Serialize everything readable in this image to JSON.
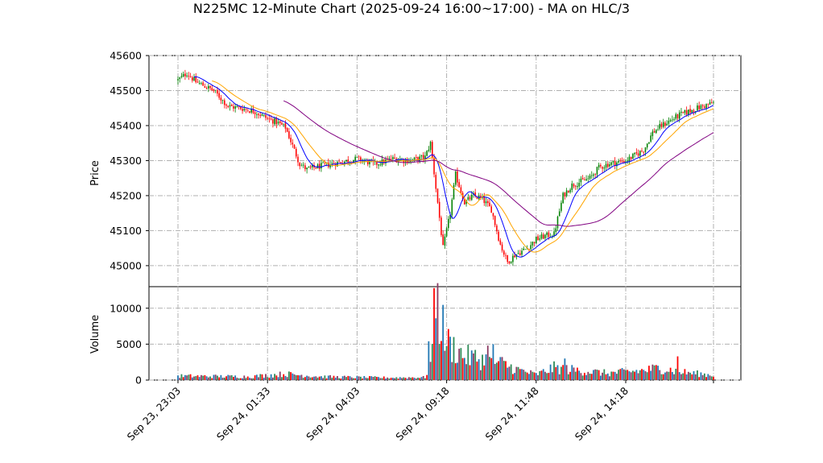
{
  "chart_data": {
    "type": "candlestick",
    "title": "N225MC 12-Minute Chart (2025-09-24 16:00~17:00) - MA on HLC/3",
    "price_panel": {
      "ylabel": "Price",
      "ylim": [
        44940,
        45600
      ],
      "yticks": [
        "45000",
        "45100",
        "45200",
        "45300",
        "45400",
        "45500",
        "45600"
      ],
      "grid": true
    },
    "volume_panel": {
      "ylabel": "Volume",
      "ylim": [
        0,
        13000
      ],
      "yticks": [
        "0",
        "5000",
        "10000"
      ],
      "grid": true
    },
    "x_ticks": [
      {
        "index": 0,
        "label": "Sep 23, 23:03"
      },
      {
        "index": 50,
        "label": "Sep 24, 01:33"
      },
      {
        "index": 100,
        "label": "Sep 24, 04:03"
      },
      {
        "index": 150,
        "label": "Sep 24, 09:18"
      },
      {
        "index": 200,
        "label": "Sep 24, 11:48"
      },
      {
        "index": 250,
        "label": "Sep 24, 14:18"
      }
    ],
    "bar_count": 300,
    "price_path": [
      [
        0,
        45530
      ],
      [
        5,
        45550
      ],
      [
        10,
        45525
      ],
      [
        20,
        45500
      ],
      [
        28,
        45455
      ],
      [
        35,
        45450
      ],
      [
        43,
        45440
      ],
      [
        50,
        45420
      ],
      [
        55,
        45410
      ],
      [
        60,
        45395
      ],
      [
        68,
        45290
      ],
      [
        72,
        45275
      ],
      [
        80,
        45285
      ],
      [
        90,
        45295
      ],
      [
        100,
        45305
      ],
      [
        110,
        45290
      ],
      [
        120,
        45305
      ],
      [
        130,
        45300
      ],
      [
        138,
        45310
      ],
      [
        141,
        45350
      ],
      [
        145,
        45180
      ],
      [
        148,
        45050
      ],
      [
        152,
        45150
      ],
      [
        155,
        45260
      ],
      [
        160,
        45180
      ],
      [
        165,
        45200
      ],
      [
        170,
        45190
      ],
      [
        175,
        45160
      ],
      [
        180,
        45060
      ],
      [
        184,
        45010
      ],
      [
        188,
        45030
      ],
      [
        195,
        45050
      ],
      [
        200,
        45075
      ],
      [
        205,
        45085
      ],
      [
        210,
        45090
      ],
      [
        215,
        45200
      ],
      [
        220,
        45230
      ],
      [
        225,
        45240
      ],
      [
        230,
        45250
      ],
      [
        235,
        45280
      ],
      [
        240,
        45290
      ],
      [
        250,
        45300
      ],
      [
        260,
        45330
      ],
      [
        265,
        45380
      ],
      [
        270,
        45400
      ],
      [
        280,
        45430
      ],
      [
        290,
        45450
      ],
      [
        299,
        45465
      ]
    ],
    "volume_path": [
      [
        0,
        600
      ],
      [
        40,
        500
      ],
      [
        60,
        900
      ],
      [
        80,
        500
      ],
      [
        100,
        400
      ],
      [
        120,
        350
      ],
      [
        138,
        400
      ],
      [
        142,
        3500
      ],
      [
        145,
        10500
      ],
      [
        150,
        5500
      ],
      [
        160,
        3500
      ],
      [
        170,
        3000
      ],
      [
        180,
        2500
      ],
      [
        190,
        1500
      ],
      [
        200,
        800
      ],
      [
        210,
        1800
      ],
      [
        220,
        1500
      ],
      [
        240,
        1000
      ],
      [
        260,
        1400
      ],
      [
        270,
        1800
      ],
      [
        280,
        1200
      ],
      [
        299,
        700
      ]
    ],
    "volume_spikes": [
      {
        "index": 143,
        "value": 12800
      },
      {
        "index": 144,
        "value": 8600
      },
      {
        "index": 140,
        "value": 5400
      },
      {
        "index": 176,
        "value": 5000
      },
      {
        "index": 173,
        "value": 4800
      },
      {
        "index": 279,
        "value": 3300
      },
      {
        "index": 216,
        "value": 3000
      }
    ],
    "moving_averages": [
      {
        "color": "#0000ff",
        "period": 10
      },
      {
        "color": "#ffa500",
        "period": 20
      },
      {
        "color": "#800080",
        "period": 60
      }
    ],
    "colors": {
      "up": "#008000",
      "down": "#ff0000",
      "vol_a": "#1f77b4",
      "vol_b": "#8b3a62",
      "vol_c": "#2e8b57",
      "grid": "#b0b0b0"
    }
  }
}
